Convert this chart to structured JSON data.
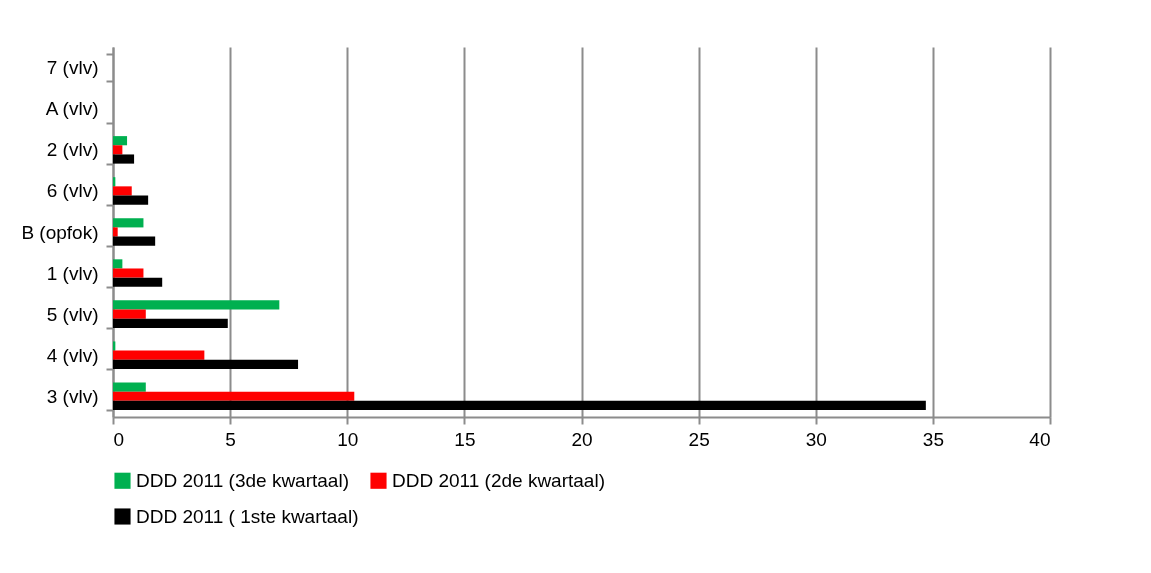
{
  "chart_data": {
    "type": "bar",
    "orientation": "horizontal",
    "categories": [
      "7 (vlv)",
      "A (vlv)",
      "2 (vlv)",
      "6 (vlv)",
      "B (opfok)",
      "1 (vlv)",
      "5 (vlv)",
      "4 (vlv)",
      "3 (vlv)"
    ],
    "series": [
      {
        "name": "DDD 2011 (3de kwartaal)",
        "color": "#00b050",
        "values": [
          0,
          0,
          0.6,
          0.1,
          1.3,
          0.4,
          7.1,
          0.1,
          1.4
        ]
      },
      {
        "name": "DDD 2011 (2de kwartaal)",
        "color": "#ff0000",
        "values": [
          0,
          0,
          0.4,
          0.8,
          0.2,
          1.3,
          1.4,
          3.9,
          10.3
        ]
      },
      {
        "name": "DDD 2011 ( 1ste kwartaal)",
        "color": "#000000",
        "values": [
          0,
          0,
          0.9,
          1.5,
          1.8,
          2.1,
          4.9,
          7.9,
          34.7
        ]
      }
    ],
    "xlim": [
      0,
      40
    ],
    "xticks": [
      0,
      5,
      10,
      15,
      20,
      25,
      30,
      35,
      40
    ],
    "grid": "x",
    "legend": "bottom"
  }
}
